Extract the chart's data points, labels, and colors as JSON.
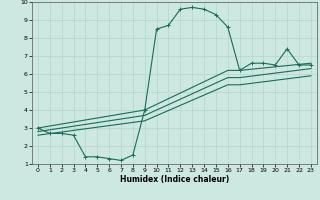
{
  "xlabel": "Humidex (Indice chaleur)",
  "xlim": [
    -0.5,
    23.5
  ],
  "ylim": [
    1,
    10
  ],
  "xticks": [
    0,
    1,
    2,
    3,
    4,
    5,
    6,
    7,
    8,
    9,
    10,
    11,
    12,
    13,
    14,
    15,
    16,
    17,
    18,
    19,
    20,
    21,
    22,
    23
  ],
  "yticks": [
    1,
    2,
    3,
    4,
    5,
    6,
    7,
    8,
    9,
    10
  ],
  "bg_color": "#cce8e0",
  "line_color": "#1a6b5a",
  "grid_color": "#b8d8d0",
  "main_line_x": [
    0,
    1,
    2,
    3,
    4,
    5,
    6,
    7,
    8,
    9,
    10,
    11,
    12,
    13,
    14,
    15,
    16,
    17,
    18,
    19,
    20,
    21,
    22,
    23
  ],
  "main_line_y": [
    3.0,
    2.7,
    2.7,
    2.6,
    1.4,
    1.4,
    1.3,
    1.2,
    1.5,
    4.0,
    8.5,
    8.7,
    9.6,
    9.7,
    9.6,
    9.3,
    8.6,
    6.2,
    6.6,
    6.6,
    6.5,
    7.4,
    6.5,
    6.5
  ],
  "line2_x": [
    0,
    9,
    16,
    17,
    23
  ],
  "line2_y": [
    3.0,
    4.0,
    6.2,
    6.2,
    6.6
  ],
  "line3_x": [
    0,
    9,
    16,
    17,
    23
  ],
  "line3_y": [
    2.8,
    3.7,
    5.8,
    5.8,
    6.3
  ],
  "line4_x": [
    0,
    9,
    16,
    17,
    23
  ],
  "line4_y": [
    2.6,
    3.4,
    5.4,
    5.4,
    5.9
  ]
}
